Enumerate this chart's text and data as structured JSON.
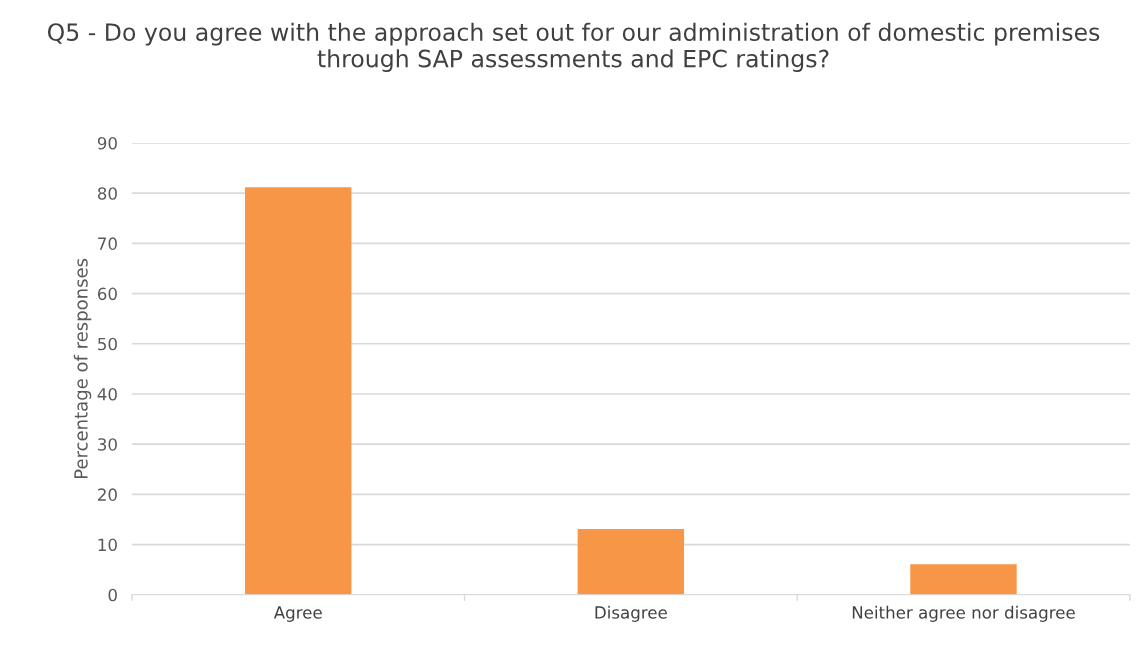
{
  "chart_data": {
    "type": "bar",
    "title": "Q5 - Do you agree with the approach set out for our administration of domestic premises through SAP assessments and EPC ratings?",
    "ylabel": "Percentage of responses",
    "categories": [
      "Agree",
      "Disagree",
      "Neither agree nor disagree"
    ],
    "values": [
      81.2,
      13.1,
      6.1
    ],
    "color": "#f79646",
    "ylim": [
      0,
      90
    ],
    "yticks": [
      0,
      10,
      20,
      30,
      40,
      50,
      60,
      70,
      80,
      90
    ],
    "grid": "y",
    "legend": false
  }
}
